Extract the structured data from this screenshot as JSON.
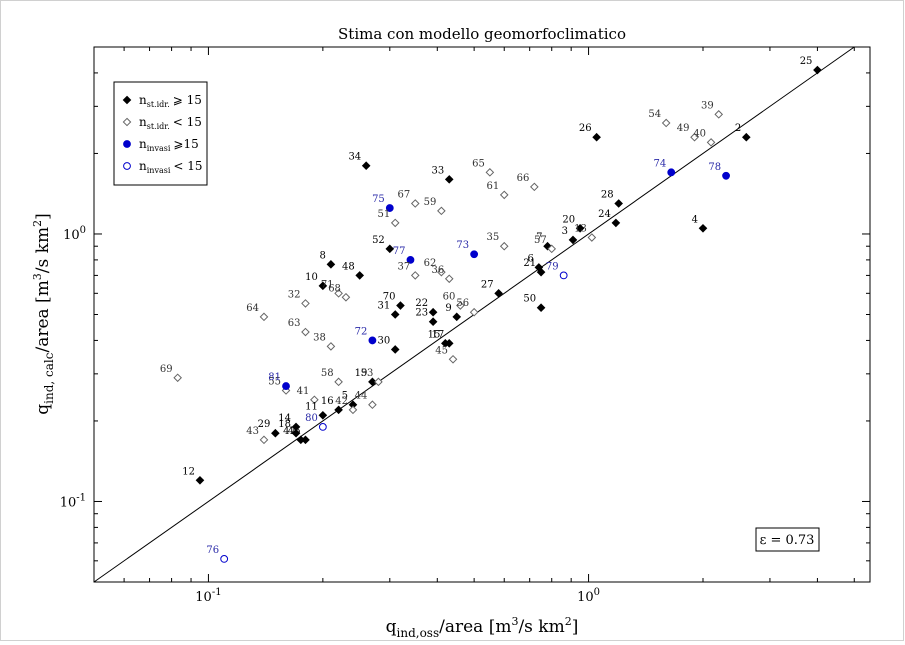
{
  "chart_data": {
    "type": "scatter",
    "title": "Stima con modello geomorfoclimatico",
    "xlabel": {
      "main": "q",
      "sub": "ind,oss",
      "rest": "/area   [m",
      "sup": "3",
      "tail": "/s km",
      "sup2": "2",
      "end": "]"
    },
    "ylabel": {
      "main": "q",
      "sub": "ind, calc",
      "rest": "/area  [m",
      "sup": "3",
      "tail": "/s km",
      "sup2": "2",
      "end": "]"
    },
    "x_scale": "log",
    "y_scale": "log",
    "xlim": [
      0.05,
      5.5
    ],
    "ylim": [
      0.05,
      5.0
    ],
    "x_ticks": [
      {
        "value": 0.1,
        "base": "10",
        "exp": "-1"
      },
      {
        "value": 1,
        "base": "10",
        "exp": "0"
      }
    ],
    "y_ticks": [
      {
        "value": 0.1,
        "base": "10",
        "exp": "-1"
      },
      {
        "value": 1,
        "base": "10",
        "exp": "0"
      }
    ],
    "grid": false,
    "reference_line": "y = x",
    "annotation": "ε = 0.73",
    "legend_position": "top-left",
    "series": [
      {
        "name": {
          "base": "n",
          "sub": "st.idr.",
          "rel": "⩾ 15"
        },
        "marker": "diamond-filled",
        "color": "#000000",
        "points": [
          {
            "id": "2",
            "x": 2.6,
            "y": 2.3
          },
          {
            "id": "3",
            "x": 0.91,
            "y": 0.95
          },
          {
            "id": "4",
            "x": 2.0,
            "y": 1.05
          },
          {
            "id": "5",
            "x": 0.24,
            "y": 0.23
          },
          {
            "id": "6",
            "x": 0.74,
            "y": 0.75
          },
          {
            "id": "7",
            "x": 0.78,
            "y": 0.9
          },
          {
            "id": "8",
            "x": 0.21,
            "y": 0.77
          },
          {
            "id": "9",
            "x": 0.45,
            "y": 0.49
          },
          {
            "id": "10",
            "x": 0.2,
            "y": 0.64
          },
          {
            "id": "11",
            "x": 0.2,
            "y": 0.21
          },
          {
            "id": "12",
            "x": 0.095,
            "y": 0.12
          },
          {
            "id": "14",
            "x": 0.17,
            "y": 0.19
          },
          {
            "id": "15",
            "x": 0.42,
            "y": 0.39
          },
          {
            "id": "16",
            "x": 0.22,
            "y": 0.22
          },
          {
            "id": "17",
            "x": 0.43,
            "y": 0.39
          },
          {
            "id": "18",
            "x": 0.17,
            "y": 0.18
          },
          {
            "id": "19",
            "x": 0.27,
            "y": 0.28
          },
          {
            "id": "20",
            "x": 0.95,
            "y": 1.05
          },
          {
            "id": "21",
            "x": 0.75,
            "y": 0.72
          },
          {
            "id": "22",
            "x": 0.39,
            "y": 0.51
          },
          {
            "id": "23",
            "x": 0.39,
            "y": 0.47
          },
          {
            "id": "24",
            "x": 1.18,
            "y": 1.1
          },
          {
            "id": "25",
            "x": 4.0,
            "y": 4.1
          },
          {
            "id": "26",
            "x": 1.05,
            "y": 2.3
          },
          {
            "id": "27",
            "x": 0.58,
            "y": 0.6
          },
          {
            "id": "28",
            "x": 1.2,
            "y": 1.3
          },
          {
            "id": "29",
            "x": 0.15,
            "y": 0.18
          },
          {
            "id": "30",
            "x": 0.31,
            "y": 0.37
          },
          {
            "id": "31",
            "x": 0.31,
            "y": 0.5
          },
          {
            "id": "33",
            "x": 0.43,
            "y": 1.6
          },
          {
            "id": "34",
            "x": 0.26,
            "y": 1.8
          },
          {
            "id": "46",
            "x": 0.18,
            "y": 0.17
          },
          {
            "id": "47",
            "x": 0.175,
            "y": 0.17
          },
          {
            "id": "48",
            "x": 0.25,
            "y": 0.7
          },
          {
            "id": "50",
            "x": 0.75,
            "y": 0.53
          },
          {
            "id": "52",
            "x": 0.3,
            "y": 0.88
          },
          {
            "id": "70",
            "x": 0.32,
            "y": 0.54
          }
        ]
      },
      {
        "name": {
          "base": "n",
          "sub": "st.idr.",
          "rel": "< 15"
        },
        "marker": "diamond-open",
        "color": "#666666",
        "points": [
          {
            "id": "13",
            "x": 1.02,
            "y": 0.97
          },
          {
            "id": "32",
            "x": 0.18,
            "y": 0.55
          },
          {
            "id": "35",
            "x": 0.6,
            "y": 0.9
          },
          {
            "id": "36",
            "x": 0.43,
            "y": 0.68
          },
          {
            "id": "37",
            "x": 0.35,
            "y": 0.7
          },
          {
            "id": "38",
            "x": 0.21,
            "y": 0.38
          },
          {
            "id": "39",
            "x": 2.2,
            "y": 2.8
          },
          {
            "id": "40",
            "x": 2.1,
            "y": 2.2
          },
          {
            "id": "41",
            "x": 0.19,
            "y": 0.24
          },
          {
            "id": "42",
            "x": 0.24,
            "y": 0.22
          },
          {
            "id": "43",
            "x": 0.14,
            "y": 0.17
          },
          {
            "id": "44",
            "x": 0.27,
            "y": 0.23
          },
          {
            "id": "45",
            "x": 0.44,
            "y": 0.34
          },
          {
            "id": "49",
            "x": 1.9,
            "y": 2.3
          },
          {
            "id": "51",
            "x": 0.31,
            "y": 1.1
          },
          {
            "id": "53",
            "x": 0.28,
            "y": 0.28
          },
          {
            "id": "54",
            "x": 1.6,
            "y": 2.6
          },
          {
            "id": "55",
            "x": 0.16,
            "y": 0.26
          },
          {
            "id": "56",
            "x": 0.5,
            "y": 0.51
          },
          {
            "id": "57",
            "x": 0.8,
            "y": 0.88
          },
          {
            "id": "58",
            "x": 0.22,
            "y": 0.28
          },
          {
            "id": "59",
            "x": 0.41,
            "y": 1.22
          },
          {
            "id": "60",
            "x": 0.46,
            "y": 0.54
          },
          {
            "id": "61",
            "x": 0.6,
            "y": 1.4
          },
          {
            "id": "62",
            "x": 0.41,
            "y": 0.72
          },
          {
            "id": "63",
            "x": 0.18,
            "y": 0.43
          },
          {
            "id": "64",
            "x": 0.14,
            "y": 0.49
          },
          {
            "id": "65",
            "x": 0.55,
            "y": 1.7
          },
          {
            "id": "66",
            "x": 0.72,
            "y": 1.5
          },
          {
            "id": "67",
            "x": 0.35,
            "y": 1.3
          },
          {
            "id": "68",
            "x": 0.23,
            "y": 0.58
          },
          {
            "id": "69",
            "x": 0.083,
            "y": 0.29
          },
          {
            "id": "71",
            "x": 0.22,
            "y": 0.6
          }
        ]
      },
      {
        "name": {
          "base": "n",
          "sub": "invasi",
          "rel": "⩾15"
        },
        "marker": "circle-filled",
        "color": "#0000cc",
        "points": [
          {
            "id": "72",
            "x": 0.27,
            "y": 0.4
          },
          {
            "id": "73",
            "x": 0.5,
            "y": 0.84
          },
          {
            "id": "74",
            "x": 1.65,
            "y": 1.7
          },
          {
            "id": "75",
            "x": 0.3,
            "y": 1.25
          },
          {
            "id": "77",
            "x": 0.34,
            "y": 0.8
          },
          {
            "id": "78",
            "x": 2.3,
            "y": 1.65
          },
          {
            "id": "81",
            "x": 0.16,
            "y": 0.27
          }
        ]
      },
      {
        "name": {
          "base": "n",
          "sub": "invasi",
          "rel": "< 15"
        },
        "marker": "circle-open",
        "color": "#0000cc",
        "points": [
          {
            "id": "76",
            "x": 0.11,
            "y": 0.061
          },
          {
            "id": "79",
            "x": 0.86,
            "y": 0.7
          },
          {
            "id": "80",
            "x": 0.2,
            "y": 0.19
          }
        ]
      }
    ]
  }
}
